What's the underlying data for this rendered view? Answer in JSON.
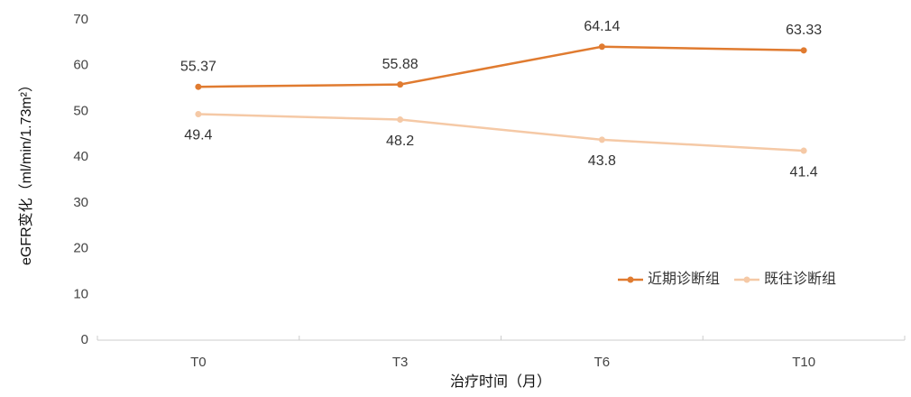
{
  "chart_data": {
    "type": "line",
    "x_label": "治疗时间（月）",
    "y_label": "eGFR变化（ml/min/1.73m²）",
    "categories": [
      "T0",
      "T3",
      "T6",
      "T10"
    ],
    "series": [
      {
        "name": "近期诊断组",
        "color": "#e07b30",
        "values": [
          55.37,
          55.88,
          64.14,
          63.33
        ]
      },
      {
        "name": "既往诊断组",
        "color": "#f5c9a6",
        "values": [
          49.4,
          48.2,
          43.8,
          41.4
        ]
      }
    ],
    "ylim": [
      0,
      70
    ],
    "yticks": [
      0,
      10,
      20,
      30,
      40,
      50,
      60,
      70
    ],
    "grid": false,
    "legend": "lower right"
  }
}
